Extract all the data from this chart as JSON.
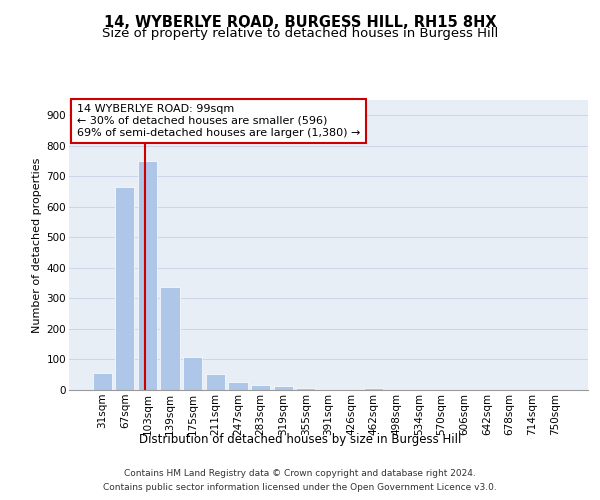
{
  "title": "14, WYBERLYE ROAD, BURGESS HILL, RH15 8HX",
  "subtitle": "Size of property relative to detached houses in Burgess Hill",
  "xlabel": "Distribution of detached houses by size in Burgess Hill",
  "ylabel": "Number of detached properties",
  "categories": [
    "31sqm",
    "67sqm",
    "103sqm",
    "139sqm",
    "175sqm",
    "211sqm",
    "247sqm",
    "283sqm",
    "319sqm",
    "355sqm",
    "391sqm",
    "426sqm",
    "462sqm",
    "498sqm",
    "534sqm",
    "570sqm",
    "606sqm",
    "642sqm",
    "678sqm",
    "714sqm",
    "750sqm"
  ],
  "values": [
    55,
    665,
    750,
    338,
    107,
    52,
    25,
    15,
    12,
    8,
    0,
    0,
    8,
    0,
    0,
    0,
    0,
    0,
    0,
    0,
    0
  ],
  "bar_color": "#aec6e8",
  "grid_color": "#ccd6e8",
  "background_color": "#e8eef5",
  "vline_color": "#cc0000",
  "annotation_text": "14 WYBERLYE ROAD: 99sqm\n← 30% of detached houses are smaller (596)\n69% of semi-detached houses are larger (1,380) →",
  "annotation_box_color": "#cc0000",
  "ylim": [
    0,
    950
  ],
  "yticks": [
    0,
    100,
    200,
    300,
    400,
    500,
    600,
    700,
    800,
    900
  ],
  "footer_line1": "Contains HM Land Registry data © Crown copyright and database right 2024.",
  "footer_line2": "Contains public sector information licensed under the Open Government Licence v3.0.",
  "title_fontsize": 10.5,
  "subtitle_fontsize": 9.5,
  "xlabel_fontsize": 8.5,
  "ylabel_fontsize": 8,
  "tick_fontsize": 7.5,
  "annotation_fontsize": 8,
  "footer_fontsize": 6.5,
  "vline_x_data": 1.889
}
